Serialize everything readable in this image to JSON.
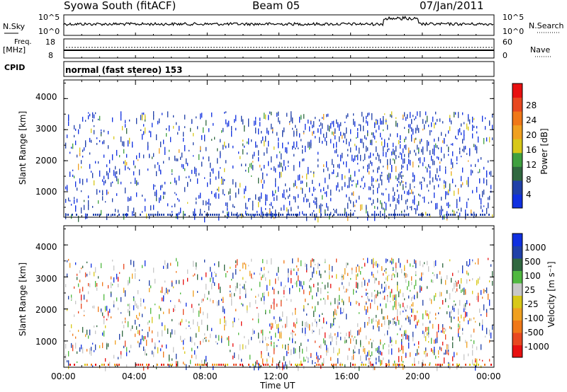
{
  "header": {
    "station": "Syowa South (fitACF)",
    "beam": "Beam 05",
    "date": "07/Jan/2011"
  },
  "top_panels": {
    "nsky_label": "N.Sky",
    "nsky_ticks": [
      "10^5",
      "10^0"
    ],
    "nsearch_label": "N.Search",
    "nsearch_ticks": [
      "10^5",
      "10^0"
    ],
    "freq_label": "Freq.",
    "freq_unit": "[MHz]",
    "freq_ticks": [
      "18",
      "8"
    ],
    "nave_label": "Nave",
    "nave_ticks": [
      "60",
      "0"
    ],
    "cpid_label": "CPID",
    "cpid_value": "normal (fast stereo) 153"
  },
  "colors": {
    "power": [
      "#1030e0",
      "#2040a8",
      "#306840",
      "#40a040",
      "#d8c818",
      "#f0a020",
      "#f07818",
      "#e84820",
      "#e81010"
    ],
    "velocity": [
      "#e81010",
      "#e84820",
      "#f07818",
      "#f0a020",
      "#d8c818",
      "#c8c8c8",
      "#50b840",
      "#306840",
      "#2040a8",
      "#1030e0"
    ]
  },
  "chart_data": [
    {
      "type": "heatmap",
      "name": "power",
      "xlabel": "",
      "ylabel": "Slant Range [km]",
      "x_ticks": [
        "00:00",
        "04:00",
        "08:00",
        "12:00",
        "16:00",
        "20:00",
        "00:00"
      ],
      "y_ticks": [
        "1000",
        "2000",
        "3000",
        "4000"
      ],
      "ylim": [
        180,
        4600
      ],
      "colorbar_label": "Power [dB]",
      "colorbar_ticks": [
        "4",
        "8",
        "12",
        "16",
        "20",
        "24",
        "28"
      ],
      "colorbar_range": [
        0,
        32
      ]
    },
    {
      "type": "heatmap",
      "name": "velocity",
      "xlabel": "Time UT",
      "ylabel": "Slant Range [km]",
      "x_ticks": [
        "00:00",
        "04:00",
        "08:00",
        "12:00",
        "16:00",
        "20:00",
        "00:00"
      ],
      "y_ticks": [
        "1000",
        "2000",
        "3000",
        "4000"
      ],
      "ylim": [
        180,
        4600
      ],
      "colorbar_label": "Velocity [m s⁻¹]",
      "colorbar_ticks": [
        "1000",
        "500",
        "100",
        "25",
        "-25",
        "-100",
        "-500",
        "-1000"
      ]
    }
  ]
}
